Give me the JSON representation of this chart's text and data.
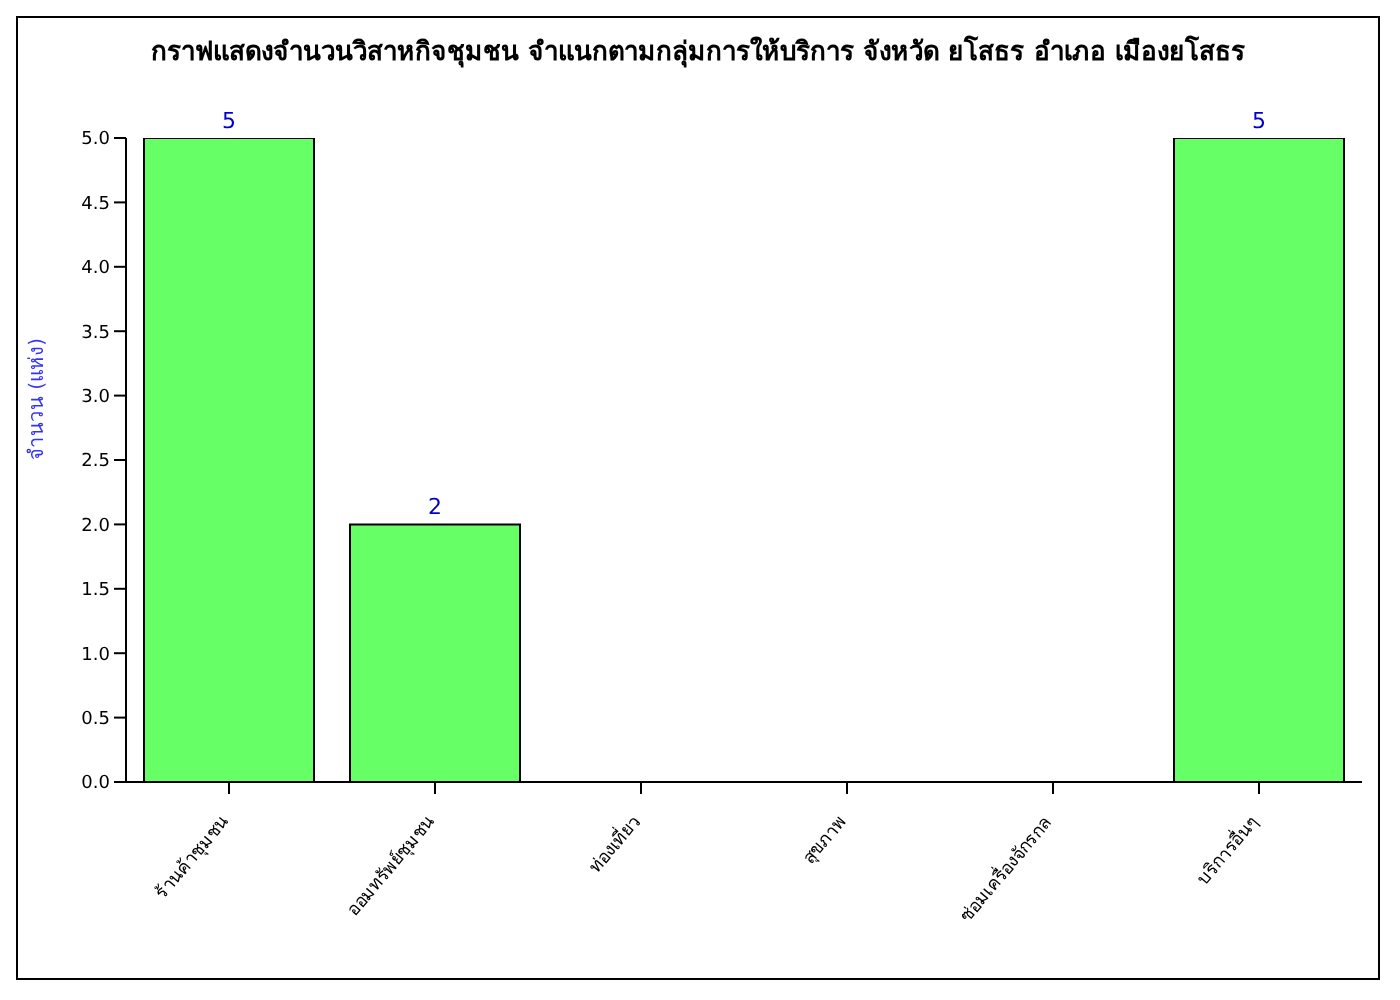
{
  "chart_data": {
    "type": "bar",
    "title": "กราฟแสดงจำนวนวิสาหกิจชุมชน จำแนกตามกลุ่มการให้บริการ จังหวัด  ยโสธร  อำเภอ  เมืองยโสธร",
    "ylabel": "จำนวน (แห่ง)",
    "categories": [
      "ร้านค้าชุมชน",
      "ออมทรัพย์ชุมชน",
      "ท่องเที่ยว",
      "สุขภาพ",
      "ซ่อมเครื่องจักรกล",
      "บริการอื่นๆ"
    ],
    "values": [
      5,
      2,
      0,
      0,
      0,
      5
    ],
    "value_labels": [
      "5",
      "2",
      null,
      null,
      null,
      "5"
    ],
    "color": "#66ff66",
    "ylim": [
      0,
      5
    ],
    "yticks": [
      {
        "value": 0,
        "label": "0.0"
      },
      {
        "value": 0.5,
        "label": "0.5"
      },
      {
        "value": 1,
        "label": "1.0"
      },
      {
        "value": 1.5,
        "label": "1.5"
      },
      {
        "value": 2,
        "label": "2.0"
      },
      {
        "value": 2.5,
        "label": "2.5"
      },
      {
        "value": 3,
        "label": "3.0"
      },
      {
        "value": 3.5,
        "label": "3.5"
      },
      {
        "value": 4,
        "label": "4.0"
      },
      {
        "value": 4.5,
        "label": "4.5"
      },
      {
        "value": 5,
        "label": "5.0"
      }
    ],
    "grid": false,
    "legend": false
  }
}
